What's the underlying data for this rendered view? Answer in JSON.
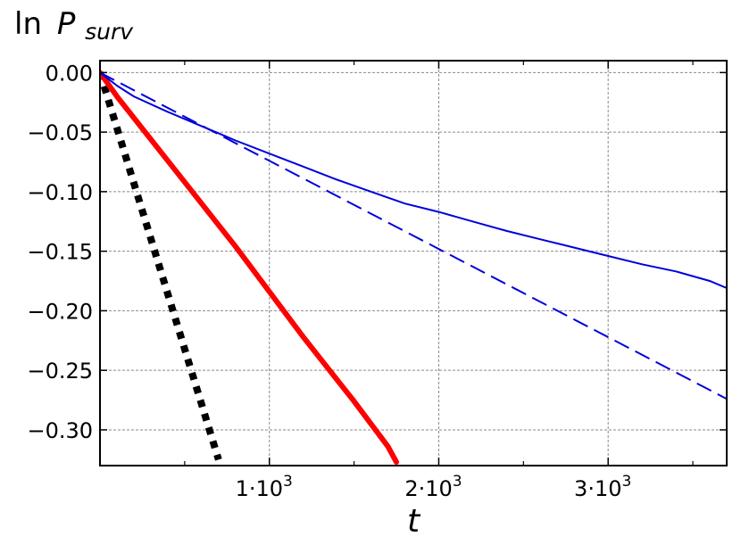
{
  "chart_data": {
    "type": "line",
    "ylabel": {
      "prefix": "ln",
      "symbol": "P",
      "subscript": "surv"
    },
    "xlabel": "t",
    "xlim": [
      0,
      3700
    ],
    "ylim": [
      -0.33,
      0.01
    ],
    "grid": true,
    "x_ticks": [
      {
        "value": 1000,
        "label": "1·10",
        "exp": "3"
      },
      {
        "value": 2000,
        "label": "2·10",
        "exp": "3"
      },
      {
        "value": 3000,
        "label": "3·10",
        "exp": "3"
      }
    ],
    "x_minor_ticks": [
      500,
      1500,
      2500,
      3500
    ],
    "y_ticks": [
      {
        "value": 0.0,
        "label": "0.00"
      },
      {
        "value": -0.05,
        "label": "−0.05"
      },
      {
        "value": -0.1,
        "label": "−0.10"
      },
      {
        "value": -0.15,
        "label": "−0.15"
      },
      {
        "value": -0.2,
        "label": "−0.20"
      },
      {
        "value": -0.25,
        "label": "−0.25"
      },
      {
        "value": -0.3,
        "label": "−0.30"
      }
    ],
    "series": [
      {
        "style": "dotted-thick",
        "color": "#000000",
        "x": [
          0,
          700
        ],
        "y": [
          0.0,
          -0.325
        ]
      },
      {
        "style": "solid-thick",
        "color": "#ff0000",
        "x": [
          0,
          100,
          200,
          300,
          400,
          500,
          600,
          700,
          800,
          900,
          1000,
          1100,
          1200,
          1300,
          1400,
          1500,
          1600,
          1700,
          1750
        ],
        "y": [
          0.0,
          -0.02,
          -0.038,
          -0.056,
          -0.074,
          -0.092,
          -0.11,
          -0.128,
          -0.146,
          -0.165,
          -0.184,
          -0.203,
          -0.222,
          -0.24,
          -0.258,
          -0.276,
          -0.295,
          -0.314,
          -0.327
        ]
      },
      {
        "style": "solid-thin",
        "color": "#0000dd",
        "x": [
          0,
          100,
          200,
          400,
          600,
          800,
          1000,
          1200,
          1400,
          1600,
          1800,
          2000,
          2200,
          2400,
          2600,
          2800,
          3000,
          3200,
          3400,
          3600,
          3700
        ],
        "y": [
          0.0,
          -0.011,
          -0.02,
          -0.033,
          -0.045,
          -0.057,
          -0.068,
          -0.079,
          -0.09,
          -0.1,
          -0.11,
          -0.117,
          -0.125,
          -0.133,
          -0.14,
          -0.147,
          -0.154,
          -0.161,
          -0.167,
          -0.175,
          -0.181
        ]
      },
      {
        "style": "dashed",
        "color": "#0000dd",
        "x": [
          0,
          3700
        ],
        "y": [
          0.0,
          -0.274
        ]
      }
    ]
  }
}
